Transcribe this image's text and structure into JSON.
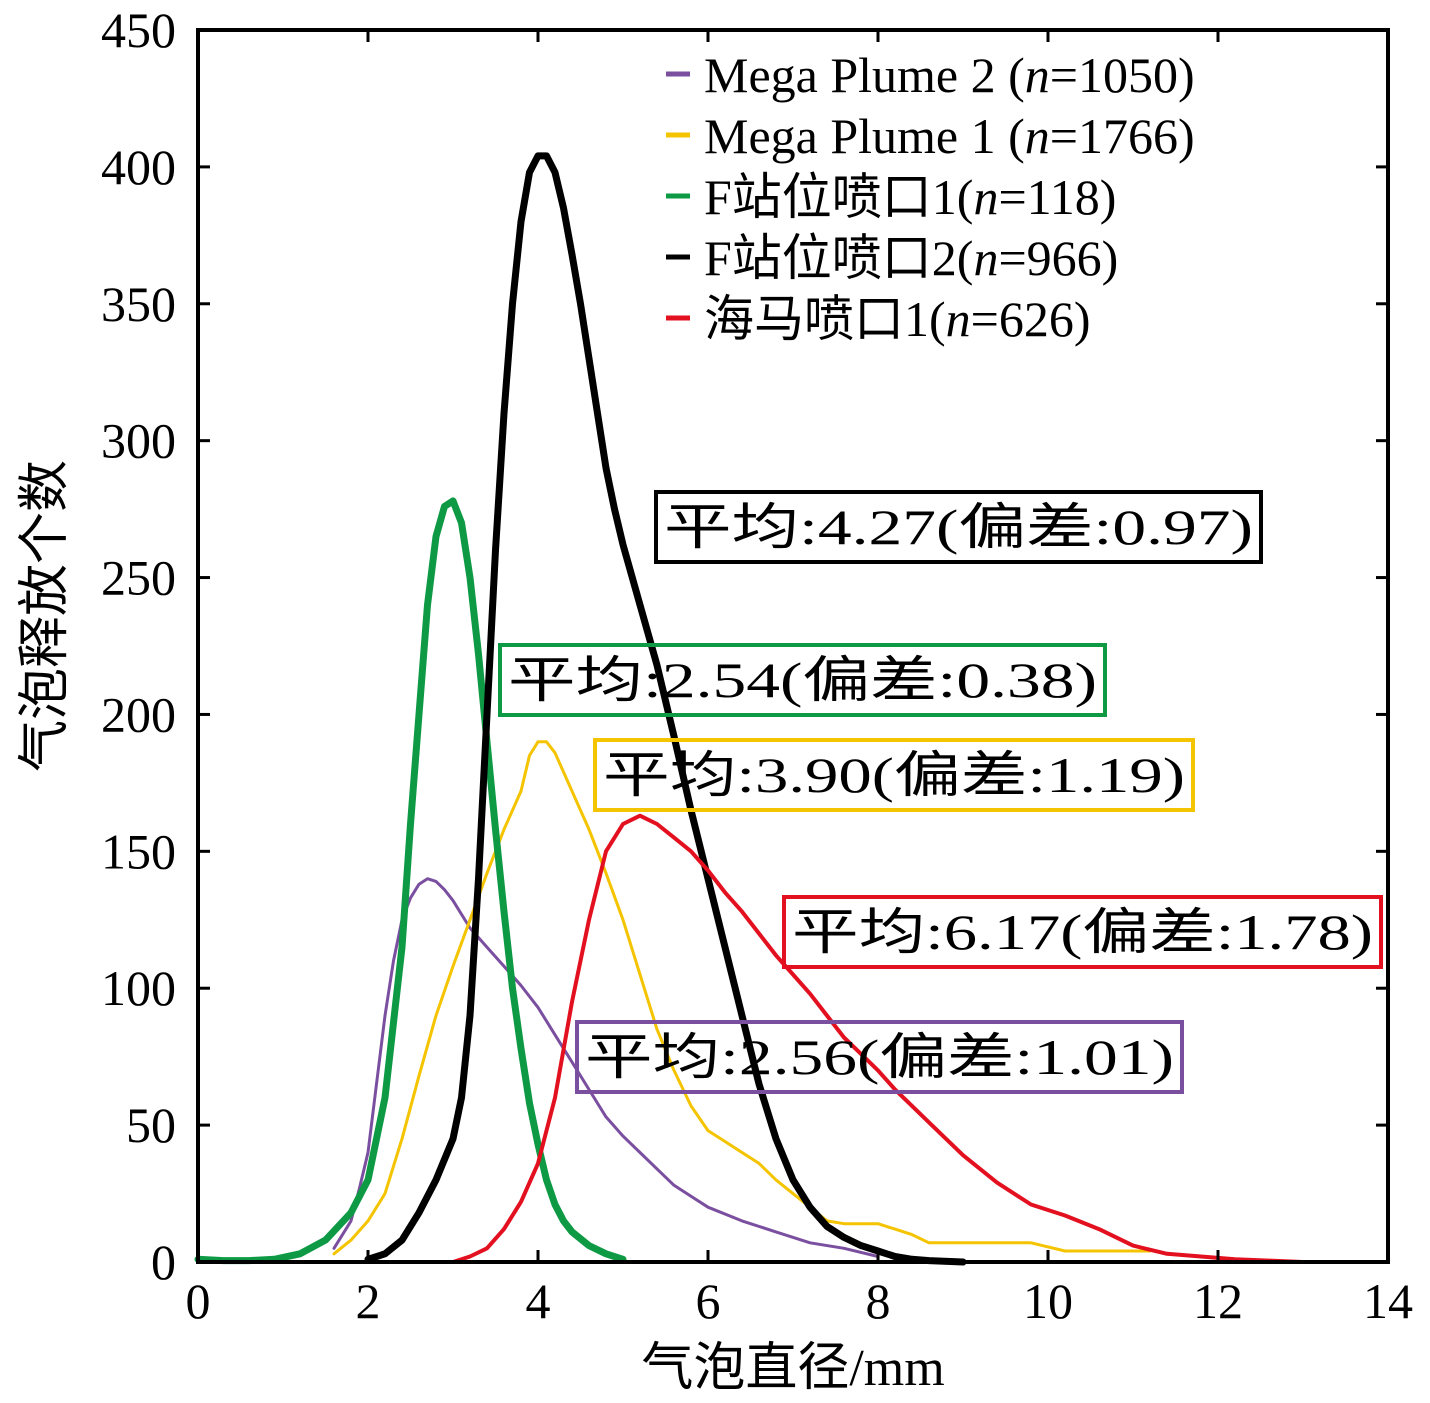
{
  "chart_data": {
    "type": "line",
    "title": "",
    "xlabel": "气泡直径/mm",
    "ylabel": "气泡释放个数",
    "xlim": [
      0,
      14
    ],
    "ylim": [
      0,
      450
    ],
    "xticks": [
      0,
      2,
      4,
      6,
      8,
      10,
      12,
      14
    ],
    "yticks": [
      0,
      50,
      100,
      150,
      200,
      250,
      300,
      350,
      400,
      450
    ],
    "grid": false,
    "legend_position": "top-right",
    "series": [
      {
        "name": "Mega Plume 2 (n=1050)",
        "color": "#7B4FA0",
        "width": 3,
        "x": [
          1.6,
          1.8,
          1.9,
          2.0,
          2.1,
          2.2,
          2.3,
          2.4,
          2.5,
          2.6,
          2.7,
          2.8,
          2.9,
          3.0,
          3.1,
          3.2,
          3.4,
          3.6,
          3.8,
          4.0,
          4.2,
          4.4,
          4.6,
          4.8,
          5.0,
          5.2,
          5.4,
          5.6,
          5.8,
          6.0,
          6.4,
          6.8,
          7.2,
          7.6,
          8.0
        ],
        "y": [
          5,
          15,
          27,
          40,
          65,
          90,
          110,
          125,
          133,
          138,
          140,
          139,
          136,
          132,
          127,
          122,
          115,
          108,
          101,
          93,
          83,
          73,
          63,
          53,
          46,
          40,
          34,
          28,
          24,
          20,
          15,
          11,
          7,
          5,
          2
        ]
      },
      {
        "name": "Mega Plume 1 (n=1766)",
        "color": "#F5C400",
        "width": 3,
        "x": [
          1.6,
          1.8,
          2.0,
          2.2,
          2.4,
          2.6,
          2.8,
          3.0,
          3.2,
          3.4,
          3.6,
          3.8,
          3.9,
          4.0,
          4.1,
          4.2,
          4.4,
          4.6,
          4.8,
          5.0,
          5.2,
          5.4,
          5.6,
          5.8,
          6.0,
          6.2,
          6.4,
          6.6,
          6.8,
          7.0,
          7.2,
          7.4,
          7.6,
          7.8,
          8.0,
          8.2,
          8.4,
          8.6,
          9.0,
          9.4,
          9.8,
          10.2,
          10.6,
          11.2
        ],
        "y": [
          3,
          8,
          15,
          25,
          45,
          68,
          90,
          108,
          125,
          142,
          158,
          172,
          185,
          190,
          190,
          186,
          172,
          158,
          142,
          125,
          105,
          85,
          70,
          57,
          48,
          44,
          40,
          36,
          30,
          25,
          20,
          15,
          14,
          14,
          14,
          12,
          10,
          7,
          7,
          7,
          7,
          4,
          4,
          4
        ]
      },
      {
        "name": "F站位喷口1(n=118)",
        "color": "#0E9A45",
        "width": 7,
        "x": [
          0.0,
          0.3,
          0.6,
          0.9,
          1.2,
          1.5,
          1.8,
          2.0,
          2.2,
          2.4,
          2.5,
          2.6,
          2.7,
          2.8,
          2.9,
          3.0,
          3.1,
          3.2,
          3.3,
          3.4,
          3.5,
          3.6,
          3.7,
          3.8,
          3.9,
          4.0,
          4.1,
          4.2,
          4.3,
          4.4,
          4.6,
          4.8,
          5.0
        ],
        "y": [
          1,
          0.5,
          0.5,
          1,
          3,
          8,
          18,
          30,
          60,
          115,
          160,
          200,
          240,
          265,
          276,
          278,
          270,
          250,
          222,
          190,
          158,
          128,
          100,
          78,
          58,
          43,
          30,
          21,
          15,
          11,
          6,
          3,
          1
        ]
      },
      {
        "name": "F站位喷口2(n=966)",
        "color": "#000000",
        "width": 7,
        "x": [
          2.0,
          2.2,
          2.4,
          2.6,
          2.8,
          3.0,
          3.1,
          3.2,
          3.3,
          3.4,
          3.5,
          3.6,
          3.7,
          3.8,
          3.9,
          4.0,
          4.1,
          4.2,
          4.3,
          4.4,
          4.5,
          4.6,
          4.7,
          4.8,
          4.9,
          5.0,
          5.2,
          5.4,
          5.6,
          5.8,
          6.0,
          6.2,
          6.4,
          6.6,
          6.8,
          7.0,
          7.2,
          7.4,
          7.6,
          7.8,
          8.0,
          8.2,
          8.4,
          8.6,
          9.0
        ],
        "y": [
          1,
          3,
          8,
          18,
          30,
          45,
          60,
          90,
          140,
          200,
          260,
          310,
          350,
          380,
          398,
          404,
          404,
          398,
          385,
          368,
          350,
          330,
          310,
          290,
          275,
          262,
          240,
          218,
          192,
          165,
          140,
          115,
          90,
          65,
          45,
          30,
          20,
          13,
          9,
          6,
          4,
          2,
          1,
          0.5,
          0
        ]
      },
      {
        "name": "海马喷口1(n=626)",
        "color": "#E3101F",
        "width": 4,
        "x": [
          1.2,
          2.0,
          3.0,
          3.2,
          3.4,
          3.6,
          3.8,
          4.0,
          4.2,
          4.4,
          4.6,
          4.8,
          5.0,
          5.2,
          5.4,
          5.6,
          5.8,
          6.0,
          6.2,
          6.4,
          6.6,
          6.8,
          7.0,
          7.2,
          7.4,
          7.6,
          7.8,
          8.0,
          8.2,
          8.4,
          8.6,
          8.8,
          9.0,
          9.4,
          9.8,
          10.2,
          10.6,
          11.0,
          11.4,
          11.8,
          12.2,
          12.6,
          13.0,
          13.4,
          14.0
        ],
        "y": [
          0,
          0,
          0,
          2,
          5,
          12,
          22,
          36,
          60,
          95,
          125,
          150,
          160,
          163,
          160,
          155,
          150,
          143,
          135,
          128,
          120,
          112,
          105,
          98,
          90,
          82,
          76,
          70,
          63,
          57,
          51,
          45,
          39,
          29,
          21,
          17,
          12,
          6,
          3,
          2,
          1,
          0.5,
          0,
          0,
          0
        ]
      }
    ],
    "legend": [
      {
        "name_prefix": "Mega Plume 2 (",
        "n_label": "n",
        "name_suffix": "=1050)",
        "color": "#7B4FA0"
      },
      {
        "name_prefix": "Mega Plume 1 (",
        "n_label": "n",
        "name_suffix": "=1766)",
        "color": "#F5C400"
      },
      {
        "name_prefix": "F站位喷口1(",
        "n_label": "n",
        "name_suffix": "=118)",
        "color": "#0E9A45"
      },
      {
        "name_prefix": "F站位喷口2(",
        "n_label": "n",
        "name_suffix": "=966)",
        "color": "#000000"
      },
      {
        "name_prefix": "海马喷口1(",
        "n_label": "n",
        "name_suffix": "=626)",
        "color": "#E3101F"
      }
    ],
    "annotations": [
      {
        "text": "平均:4.27(偏差:0.97)",
        "color": "#000000"
      },
      {
        "text": "平均:2.54(偏差:0.38)",
        "color": "#0E9A45"
      },
      {
        "text": "平均:3.90(偏差:1.19)",
        "color": "#F5C400"
      },
      {
        "text": "平均:6.17(偏差:1.78)",
        "color": "#E3101F"
      },
      {
        "text": "平均:2.56(偏差:1.01)",
        "color": "#7B4FA0"
      }
    ]
  }
}
